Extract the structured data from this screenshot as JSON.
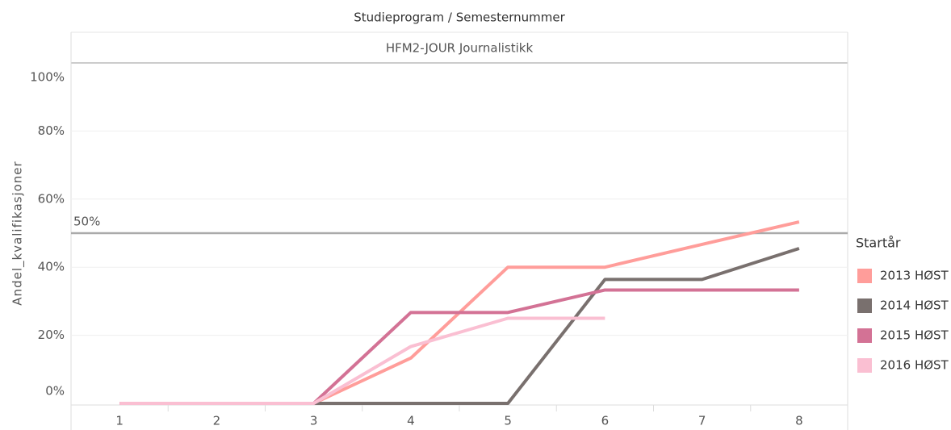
{
  "chart_data": {
    "type": "line",
    "title": "Studieprogram / Semesternummer",
    "panel_title": "HFM2-JOUR Journalistikk",
    "y_label": "Andel_kvalifikasjoner",
    "legend_title": "Startår",
    "x": [
      1,
      2,
      3,
      4,
      5,
      6,
      7,
      8
    ],
    "xlim": [
      0.5,
      8.5
    ],
    "xticks": [
      1,
      2,
      3,
      4,
      5,
      6,
      7,
      8
    ],
    "ylim": [
      0,
      100
    ],
    "yticks": [
      {
        "value": 0,
        "label": "0%"
      },
      {
        "value": 20,
        "label": "20%"
      },
      {
        "value": 40,
        "label": "40%"
      },
      {
        "value": 60,
        "label": "60%"
      },
      {
        "value": 80,
        "label": "80%"
      },
      {
        "value": 100,
        "label": "100%"
      }
    ],
    "grid": true,
    "reference_line": {
      "value": 50,
      "label": "50%"
    },
    "legend_position": "right",
    "series": [
      {
        "name": "2013 HØST",
        "color": "#ff9d9a",
        "values": [
          0,
          0,
          0,
          13.3,
          40,
          40,
          46.7,
          53.3
        ]
      },
      {
        "name": "2014 HØST",
        "color": "#79706e",
        "values": [
          0,
          0,
          0,
          0,
          0,
          36.4,
          36.4,
          45.5
        ]
      },
      {
        "name": "2015 HØST",
        "color": "#d37295",
        "values": [
          0,
          0,
          0,
          26.7,
          26.7,
          33.3,
          33.3,
          33.3
        ]
      },
      {
        "name": "2016 HØST",
        "color": "#fabfd2",
        "values": [
          0,
          0,
          0,
          16.7,
          25,
          25,
          null,
          null
        ]
      }
    ]
  }
}
